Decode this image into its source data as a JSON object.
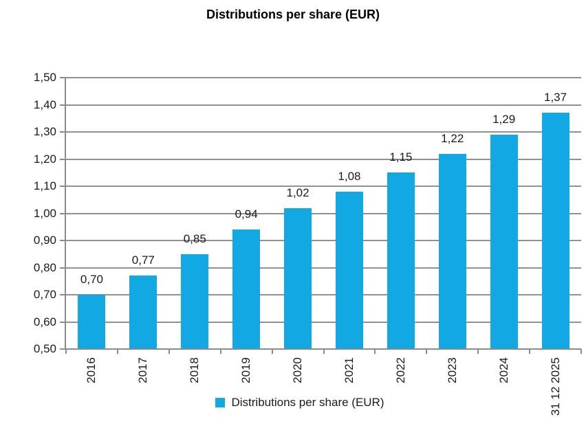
{
  "title": "Distributions per share (EUR)",
  "legend": {
    "label": "Distributions per share (EUR)"
  },
  "chart_data": {
    "type": "bar",
    "title": "Distributions per share (EUR)",
    "categories": [
      "2016",
      "2017",
      "2018",
      "2019",
      "2020",
      "2021",
      "2022",
      "2023",
      "2024",
      "31 12 2025"
    ],
    "values": [
      0.7,
      0.77,
      0.85,
      0.94,
      1.02,
      1.08,
      1.15,
      1.22,
      1.29,
      1.37
    ],
    "value_labels": [
      "0,70",
      "0,77",
      "0,85",
      "0,94",
      "1,02",
      "1,08",
      "1,15",
      "1,22",
      "1,29",
      "1,37"
    ],
    "ylim": [
      0.5,
      1.5
    ],
    "ytick_step": 0.1,
    "ytick_labels": [
      "1,50",
      "1,40",
      "1,30",
      "1,20",
      "1,10",
      "1,00",
      "0,90",
      "0,80",
      "0,70",
      "0,60",
      "0,50"
    ],
    "grid": true,
    "legend_entry": "Distributions per share (EUR)",
    "legend_position": "bottom",
    "xlabel": "",
    "ylabel": "",
    "bar_color": "#12a8e3",
    "gridline_color": "#909090",
    "axis_color": "#8a8a8a",
    "label_color": "#1a1a1a",
    "title_color": "#000000"
  }
}
